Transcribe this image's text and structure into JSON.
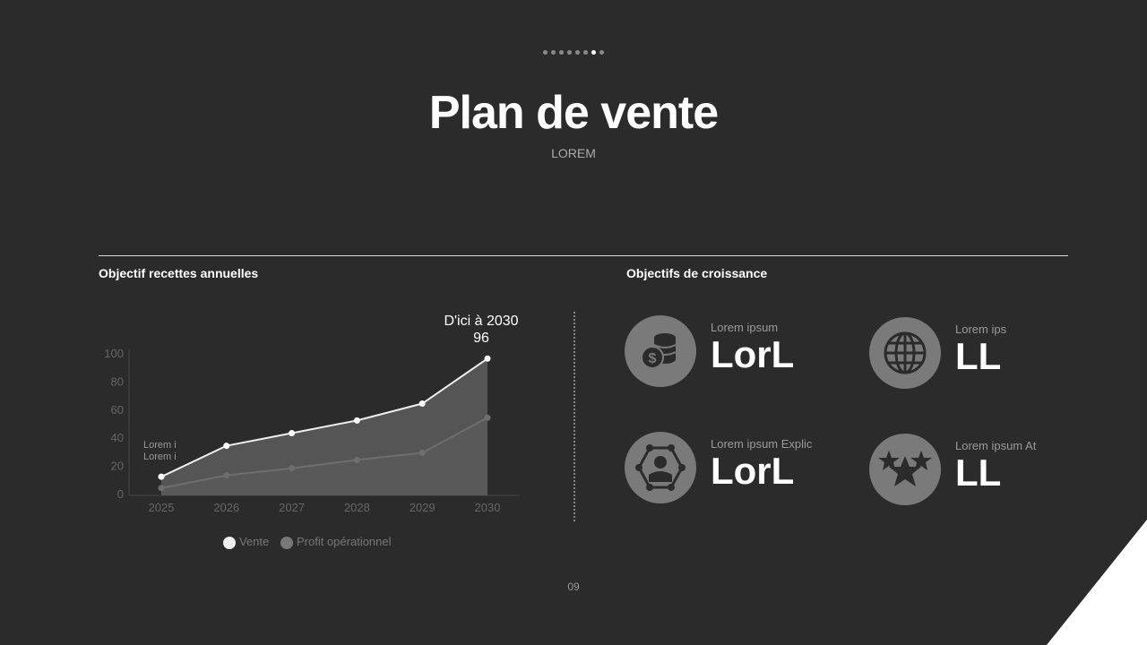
{
  "pagination": {
    "count": 8,
    "active": 7
  },
  "title": "Plan de vente",
  "subtitle": "LOREM",
  "left_section": {
    "title": "Objectif recettes annuelles"
  },
  "right_section": {
    "title": "Objectifs de croissance"
  },
  "chart_data": {
    "type": "area",
    "x": [
      "2025",
      "2026",
      "2027",
      "2028",
      "2029",
      "2030"
    ],
    "series": [
      {
        "name": "Vente",
        "values": [
          12,
          34,
          43,
          52,
          64,
          96
        ],
        "color": "#ffffff"
      },
      {
        "name": "Profit opérationnel",
        "values": [
          4,
          13,
          18,
          24,
          29,
          54
        ],
        "color": "#7a7a7a"
      }
    ],
    "ylim": [
      0,
      100
    ],
    "yticks": [
      "0",
      "20",
      "40",
      "60",
      "80",
      "100"
    ],
    "annotation": {
      "line1": "D'ici à 2030",
      "line2": "96"
    },
    "side_label": {
      "line1": "Lorem i",
      "line2": "Lorem i"
    },
    "legend_position": "bottom"
  },
  "kpis": [
    {
      "label": "Lorem ipsum",
      "value": "LorL",
      "icon": "coins-dollar-icon"
    },
    {
      "label": "Lorem ips",
      "value": "LL",
      "icon": "globe-icon"
    },
    {
      "label": "Lorem ipsum Explic",
      "value": "LorL",
      "icon": "network-person-icon"
    },
    {
      "label": "Lorem ipsum At",
      "value": "LL",
      "icon": "stars-icon"
    }
  ],
  "page_number": "09",
  "colors": {
    "background": "#2b2b2b",
    "icon_circle": "#7a7a7a"
  }
}
